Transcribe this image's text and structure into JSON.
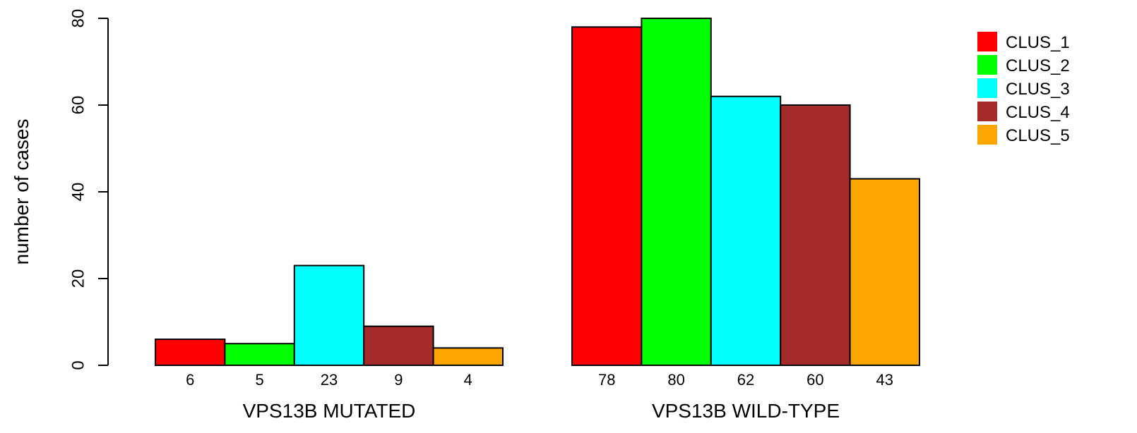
{
  "chart_data": {
    "type": "bar",
    "title": "",
    "xlabel": "",
    "ylabel": "number of cases",
    "ylim": [
      0,
      80
    ],
    "yticks": [
      "0",
      "20",
      "40",
      "60",
      "80"
    ],
    "categories": [
      "VPS13B MUTATED",
      "VPS13B WILD-TYPE"
    ],
    "series": [
      {
        "name": "CLUS_1",
        "color": "#ff0000",
        "values": [
          6,
          78
        ]
      },
      {
        "name": "CLUS_2",
        "color": "#00ff00",
        "values": [
          5,
          80
        ]
      },
      {
        "name": "CLUS_3",
        "color": "#00ffff",
        "values": [
          23,
          62
        ]
      },
      {
        "name": "CLUS_4",
        "color": "#a52a2a",
        "values": [
          9,
          60
        ]
      },
      {
        "name": "CLUS_5",
        "color": "#ffa500",
        "values": [
          4,
          43
        ]
      }
    ],
    "value_labels": [
      [
        "6",
        "5",
        "23",
        "9",
        "4"
      ],
      [
        "78",
        "80",
        "62",
        "60",
        "43"
      ]
    ],
    "grid": false,
    "legend": "top-right"
  }
}
